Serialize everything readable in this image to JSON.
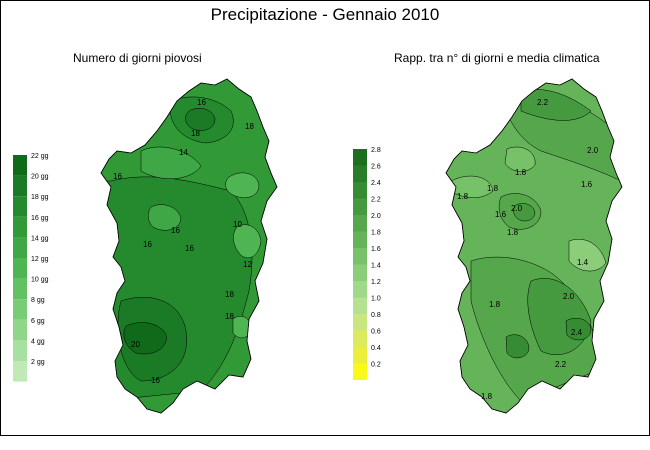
{
  "title": "Precipitazione - Gennaio 2010",
  "maps": [
    {
      "subtitle": "Numero di giorni piovosi",
      "legend": {
        "labels": [
          "22 gg",
          "20 gg",
          "18 gg",
          "16 gg",
          "14 gg",
          "12 gg",
          "10 gg",
          "8 gg",
          "6 gg",
          "4 gg",
          "2 gg"
        ],
        "colors": [
          "#0f6b1a",
          "#1b7a25",
          "#258a2e",
          "#319a37",
          "#3fa745",
          "#4fb552",
          "#62c163",
          "#78cc76",
          "#8fd68b",
          "#a7e0a0",
          "#bfeab6"
        ]
      },
      "contour_labels": [
        "16",
        "18",
        "14",
        "16",
        "18",
        "16",
        "16",
        "10",
        "12",
        "18",
        "16",
        "20",
        "18",
        "16"
      ]
    },
    {
      "subtitle": "Rapp. tra n° di giorni e media climatica",
      "legend": {
        "labels": [
          "2.8",
          "2.6",
          "2.4",
          "2.2",
          "2.0",
          "1.8",
          "1.6",
          "1.4",
          "1.2",
          "1.0",
          "0.8",
          "0.6",
          "0.4",
          "0.2"
        ],
        "colors": [
          "#1d6e1d",
          "#2a7d28",
          "#368c33",
          "#45993f",
          "#56a74c",
          "#66b45a",
          "#77c168",
          "#8ccd7a",
          "#9fda8a",
          "#b4e291",
          "#c9e67f",
          "#dcea5d",
          "#ecef3a",
          "#fafa1a"
        ]
      },
      "contour_labels": [
        "2.2",
        "2.0",
        "1.8",
        "1.6",
        "1.8",
        "1.8",
        "2.0",
        "1.6",
        "1.8",
        "1.4",
        "2.0",
        "1.8",
        "2.4",
        "2.2",
        "1.8"
      ]
    }
  ]
}
